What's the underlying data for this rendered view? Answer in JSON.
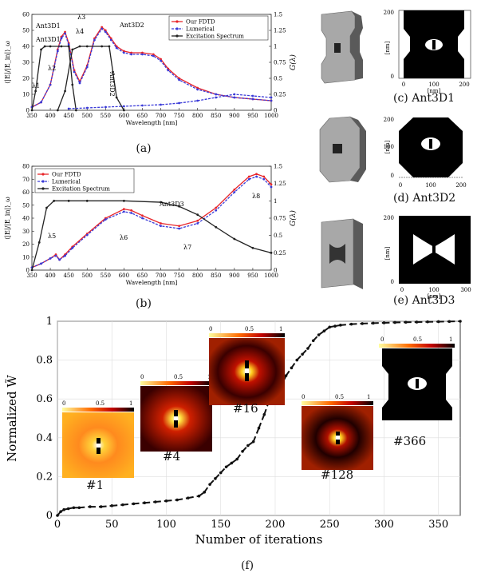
{
  "panel_a": {
    "caption": "(a)",
    "chart_data": {
      "type": "line",
      "xlabel": "Wavelength [nm]",
      "ylabel": "⟨|E|/|E_in|⟩_ω",
      "y2label": "G(λ)",
      "xlim": [
        350,
        1000
      ],
      "ylim": [
        0,
        60
      ],
      "y2lim": [
        0,
        1.5
      ],
      "xticks": [
        "350",
        "400",
        "450",
        "500",
        "550",
        "600",
        "650",
        "700",
        "750",
        "800",
        "850",
        "900",
        "950",
        "1000"
      ],
      "yticks": [
        "0",
        "10",
        "20",
        "30",
        "40",
        "50",
        "60"
      ],
      "y2ticks": [
        "0",
        "0.25",
        "0.5",
        "0.75",
        "1",
        "1.25",
        "1.5"
      ],
      "legend": [
        "Our FDTD",
        "Lumerical",
        "Excitation Spectrum"
      ],
      "legend_position": "top-right",
      "annotations": [
        "Ant3D1",
        "Ant3D1",
        "Ant3D2",
        "Ant3D2",
        "λ1",
        "λ2",
        "λ3",
        "λ4"
      ],
      "series": [
        {
          "name": "Our FDTD",
          "axis": "left",
          "color": "#e8252a",
          "x": [
            350,
            375,
            400,
            420,
            430,
            440,
            450,
            465,
            480,
            500,
            520,
            540,
            550,
            565,
            580,
            600,
            620,
            650,
            680,
            700,
            720,
            750,
            800,
            850,
            900,
            950,
            1000
          ],
          "y": [
            2,
            5,
            16,
            38,
            46,
            49,
            42,
            25,
            18,
            28,
            45,
            52,
            50,
            45,
            40,
            37,
            36,
            36,
            35,
            32,
            26,
            20,
            14,
            10,
            8,
            7,
            6
          ]
        },
        {
          "name": "Lumerical",
          "axis": "left",
          "color": "#3a3ad8",
          "x": [
            350,
            375,
            400,
            420,
            430,
            440,
            450,
            465,
            480,
            500,
            520,
            540,
            550,
            565,
            580,
            600,
            620,
            650,
            680,
            700,
            720,
            750,
            800,
            850,
            900,
            950,
            1000
          ],
          "y": [
            2,
            5,
            16,
            37,
            45,
            48,
            41,
            24,
            17,
            27,
            44,
            51,
            49,
            44,
            39,
            36,
            35,
            35,
            34,
            31,
            25,
            19,
            13,
            10,
            8,
            7,
            6
          ]
        },
        {
          "name": "Excitation Spectrum (Ant3D1)",
          "axis": "right",
          "color": "#222222",
          "x": [
            350,
            360,
            375,
            385,
            400,
            430,
            450,
            460,
            470
          ],
          "y": [
            0,
            0.3,
            0.95,
            1,
            1,
            1,
            1,
            0.4,
            0
          ]
        },
        {
          "name": "Excitation Spectrum (Ant3D2)",
          "axis": "right",
          "color": "#222222",
          "x": [
            420,
            440,
            460,
            480,
            500,
            540,
            560,
            570,
            580,
            600
          ],
          "y": [
            0,
            0.3,
            0.95,
            1,
            1,
            1,
            1,
            0.6,
            0.2,
            0
          ]
        },
        {
          "name": "Ant3D1 blue",
          "axis": "left",
          "color": "#3a3ad8",
          "x": [
            450,
            500,
            550,
            600,
            650,
            700,
            750,
            800,
            850,
            900,
            950,
            1000
          ],
          "y": [
            1,
            1.5,
            2,
            2.5,
            3,
            3.5,
            4.5,
            6,
            8,
            10,
            9,
            8
          ]
        }
      ]
    }
  },
  "panel_b": {
    "caption": "(b)",
    "chart_data": {
      "type": "line",
      "xlabel": "Wavelength [nm]",
      "ylabel": "⟨|E|/|E_in|⟩_ω",
      "y2label": "G(λ)",
      "xlim": [
        350,
        1000
      ],
      "ylim": [
        0,
        80
      ],
      "y2lim": [
        0,
        1.5
      ],
      "xticks": [
        "350",
        "400",
        "450",
        "500",
        "550",
        "600",
        "650",
        "700",
        "750",
        "800",
        "850",
        "900",
        "950",
        "1000"
      ],
      "yticks": [
        "0",
        "10",
        "20",
        "30",
        "40",
        "50",
        "60",
        "70",
        "80"
      ],
      "y2ticks": [
        "0",
        "0.25",
        "0.5",
        "0.75",
        "1",
        "1.25",
        "1.5"
      ],
      "legend": [
        "Our FDTD",
        "Lumerical",
        "Excitation Spectrum"
      ],
      "legend_position": "top-left",
      "annotations": [
        "Ant3D3",
        "λ5",
        "λ6",
        "λ7",
        "λ8"
      ],
      "series": [
        {
          "name": "Our FDTD",
          "axis": "left",
          "color": "#e8252a",
          "x": [
            350,
            375,
            400,
            415,
            425,
            440,
            460,
            500,
            550,
            600,
            620,
            650,
            700,
            750,
            800,
            850,
            900,
            940,
            960,
            980,
            1000
          ],
          "y": [
            2,
            5,
            9,
            12,
            8,
            12,
            18,
            28,
            40,
            47,
            46,
            42,
            36,
            34,
            38,
            48,
            62,
            72,
            74,
            72,
            66
          ]
        },
        {
          "name": "Lumerical",
          "axis": "left",
          "color": "#3a3ad8",
          "x": [
            350,
            375,
            400,
            415,
            425,
            440,
            460,
            500,
            550,
            600,
            620,
            650,
            700,
            750,
            800,
            850,
            900,
            940,
            960,
            980,
            1000
          ],
          "y": [
            2,
            5,
            9,
            11,
            8,
            11,
            17,
            27,
            39,
            45,
            44,
            40,
            34,
            32,
            36,
            46,
            60,
            70,
            72,
            70,
            64
          ]
        },
        {
          "name": "Excitation Spectrum",
          "axis": "right",
          "color": "#222222",
          "x": [
            350,
            370,
            390,
            410,
            450,
            500,
            600,
            700,
            750,
            800,
            850,
            900,
            950,
            1000
          ],
          "y": [
            0,
            0.4,
            0.9,
            1,
            1,
            1,
            1,
            0.98,
            0.92,
            0.8,
            0.62,
            0.45,
            0.32,
            0.25
          ]
        }
      ]
    }
  },
  "panel_f": {
    "caption": "(f)",
    "chart_data": {
      "type": "scatter",
      "xlabel": "Number of iterations",
      "ylabel": "Normalized W̃",
      "xlim": [
        0,
        370
      ],
      "ylim": [
        0,
        1
      ],
      "xticks": [
        "0",
        "50",
        "100",
        "150",
        "200",
        "250",
        "300",
        "350"
      ],
      "yticks": [
        "0",
        "0.2",
        "0.4",
        "0.6",
        "0.8",
        "1"
      ],
      "grid": true,
      "x": [
        0,
        3,
        6,
        10,
        15,
        20,
        30,
        40,
        50,
        60,
        70,
        80,
        90,
        100,
        110,
        120,
        130,
        135,
        140,
        145,
        150,
        155,
        160,
        165,
        170,
        175,
        180,
        185,
        190,
        195,
        200,
        205,
        210,
        215,
        220,
        225,
        230,
        235,
        240,
        245,
        250,
        255,
        260,
        270,
        280,
        290,
        300,
        310,
        320,
        330,
        340,
        350,
        360,
        370
      ],
      "y": [
        0.0,
        0.02,
        0.03,
        0.035,
        0.04,
        0.04,
        0.045,
        0.045,
        0.05,
        0.055,
        0.06,
        0.065,
        0.07,
        0.075,
        0.08,
        0.09,
        0.1,
        0.12,
        0.16,
        0.19,
        0.22,
        0.25,
        0.27,
        0.29,
        0.33,
        0.36,
        0.38,
        0.45,
        0.52,
        0.6,
        0.62,
        0.66,
        0.72,
        0.76,
        0.8,
        0.83,
        0.86,
        0.9,
        0.93,
        0.95,
        0.97,
        0.975,
        0.98,
        0.985,
        0.988,
        0.99,
        0.992,
        0.994,
        0.995,
        0.996,
        0.997,
        0.998,
        0.999,
        1.0
      ]
    },
    "insets": [
      {
        "label": "#1",
        "scale": [
          "0",
          "0.5",
          "1"
        ]
      },
      {
        "label": "#4",
        "scale": [
          "0",
          "0.5",
          "1"
        ]
      },
      {
        "label": "#16",
        "scale": [
          "0",
          "0.5",
          "1"
        ]
      },
      {
        "label": "#128",
        "scale": [
          "0",
          "0.5",
          "1"
        ]
      },
      {
        "label": "#366",
        "scale": [
          "0",
          "0.5",
          "1"
        ]
      }
    ]
  },
  "antennas": [
    {
      "caption": "(c) Ant3D1",
      "y_ticks": [
        "200",
        "0"
      ],
      "x_ticks": [
        "0",
        "100",
        "200"
      ],
      "axis_label": "[nm]"
    },
    {
      "caption": "(d) Ant3D2",
      "y_ticks": [
        "200",
        "100",
        "0"
      ],
      "x_ticks": [
        "0",
        "100",
        "200"
      ],
      "axis_label": "[nm]"
    },
    {
      "caption": "(e) Ant3D3",
      "y_ticks": [
        "200",
        "0"
      ],
      "x_ticks": [
        "0",
        "100",
        "300"
      ],
      "axis_label": "[nm]"
    }
  ]
}
